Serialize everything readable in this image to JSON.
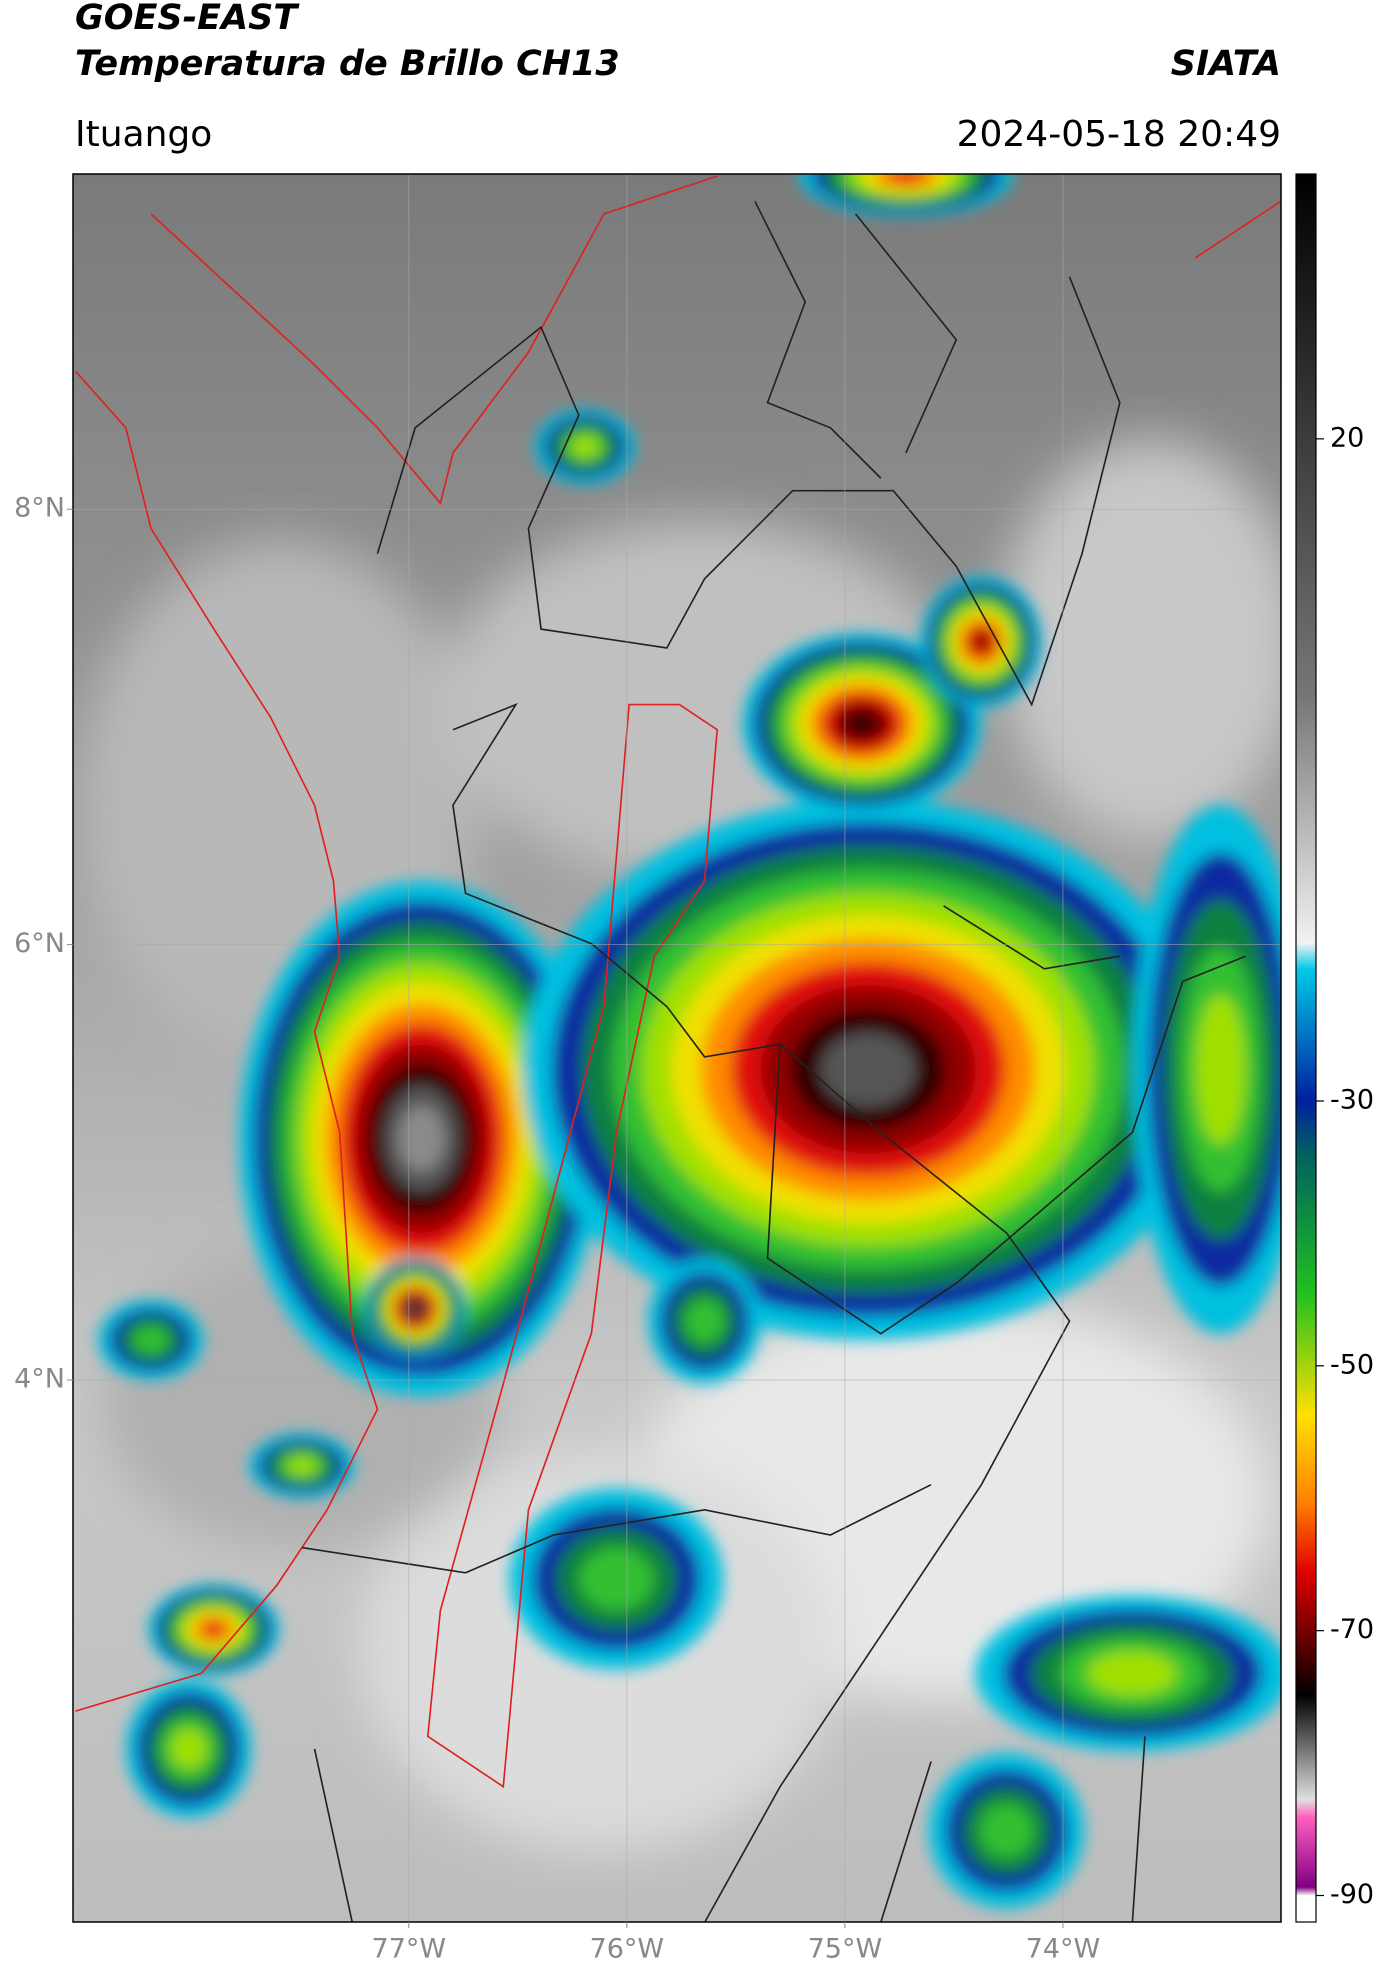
{
  "header": {
    "title": "GOES-EAST",
    "subtitle": "Temperatura de Brillo CH13",
    "source": "SIATA",
    "location": "Ituango",
    "datetime": "2024-05-18 20:49"
  },
  "map": {
    "xlim": [
      -78.54,
      -73.0
    ],
    "ylim": [
      1.51,
      9.54
    ],
    "xticks": [
      {
        "value": -77,
        "label": "77°W"
      },
      {
        "value": -76,
        "label": "76°W"
      },
      {
        "value": -75,
        "label": "75°W"
      },
      {
        "value": -74,
        "label": "74°W"
      }
    ],
    "yticks": [
      {
        "value": 8,
        "label": "8°N"
      },
      {
        "value": 6,
        "label": "6°N"
      },
      {
        "value": 4,
        "label": "4°N"
      }
    ],
    "grid": true
  },
  "colorbar": {
    "lim": [
      -92,
      40
    ],
    "ticks": [
      20,
      -30,
      -50,
      -70,
      -90
    ]
  }
}
